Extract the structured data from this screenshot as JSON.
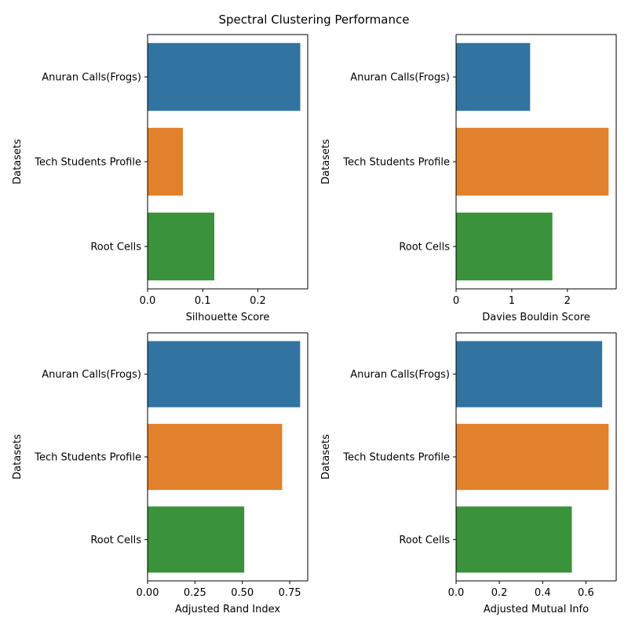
{
  "chart_data": {
    "title": "Spectral Clustering Performance",
    "colors": [
      "#3274a1",
      "#e1812c",
      "#3a923a"
    ],
    "subplots": [
      {
        "type": "bar",
        "orientation": "horizontal",
        "categories": [
          "Anuran Calls(Frogs)",
          "Tech Students Profile",
          "Root Cells"
        ],
        "values": [
          0.277,
          0.064,
          0.121
        ],
        "xlabel": "Silhouette Score",
        "ylabel": "Datasets",
        "xlim": [
          0,
          0.2905
        ],
        "xticks": [
          0.0,
          0.1,
          0.2
        ],
        "xtick_labels": [
          "0.0",
          "0.1",
          "0.2"
        ]
      },
      {
        "type": "bar",
        "orientation": "horizontal",
        "categories": [
          "Anuran Calls(Frogs)",
          "Tech Students Profile",
          "Root Cells"
        ],
        "values": [
          1.33,
          2.74,
          1.73
        ],
        "xlabel": "Davies Bouldin Score",
        "ylabel": "Datasets",
        "xlim": [
          0,
          2.877
        ],
        "xticks": [
          0,
          1,
          2
        ],
        "xtick_labels": [
          "0",
          "1",
          "2"
        ]
      },
      {
        "type": "bar",
        "orientation": "horizontal",
        "categories": [
          "Anuran Calls(Frogs)",
          "Tech Students Profile",
          "Root Cells"
        ],
        "values": [
          0.805,
          0.71,
          0.51
        ],
        "xlabel": "Adjusted Rand Index",
        "ylabel": "Datasets",
        "xlim": [
          0,
          0.845
        ],
        "xticks": [
          0.0,
          0.25,
          0.5,
          0.75
        ],
        "xtick_labels": [
          "0.00",
          "0.25",
          "0.50",
          "0.75"
        ]
      },
      {
        "type": "bar",
        "orientation": "horizontal",
        "categories": [
          "Anuran Calls(Frogs)",
          "Tech Students Profile",
          "Root Cells"
        ],
        "values": [
          0.675,
          0.705,
          0.535
        ],
        "xlabel": "Adjusted Mutual Info",
        "ylabel": "Datasets",
        "xlim": [
          0,
          0.74
        ],
        "xticks": [
          0.0,
          0.2,
          0.4,
          0.6
        ],
        "xtick_labels": [
          "0.0",
          "0.2",
          "0.4",
          "0.6"
        ]
      }
    ]
  }
}
